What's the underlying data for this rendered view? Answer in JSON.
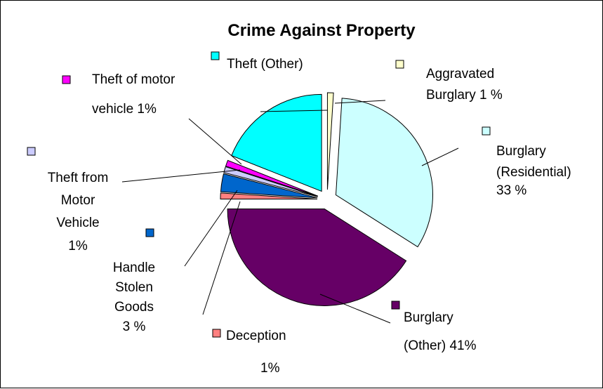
{
  "chart_data": {
    "type": "pie",
    "title": "Crime Against Property",
    "slices": [
      {
        "key": "aggravated_burglary",
        "value": 1,
        "color": "#FFFFCC",
        "label_lines": [
          "Aggravated",
          "Burglary 1 %"
        ]
      },
      {
        "key": "burglary_residential",
        "value": 33,
        "color": "#CCFFFF",
        "label_lines": [
          "Burglary",
          "(Residential)",
          "33 %"
        ]
      },
      {
        "key": "burglary_other",
        "value": 41,
        "color": "#660066",
        "label_lines": [
          "Burglary",
          "(Other) 41%"
        ]
      },
      {
        "key": "deception",
        "value": 1,
        "color": "#FF8080",
        "label_lines": [
          "Deception",
          "1%"
        ]
      },
      {
        "key": "handle_stolen_goods",
        "value": 3,
        "color": "#0066CC",
        "label_lines": [
          "Handle",
          "Stolen",
          "Goods",
          "3 %"
        ]
      },
      {
        "key": "theft_from_motor_vehicle",
        "value": 1,
        "color": "#CCCCFF",
        "label_lines": [
          "Theft from",
          "Motor",
          "Vehicle",
          "1%"
        ]
      },
      {
        "key": "theft_of_motor_vehicle",
        "value": 1,
        "color": "#FF00FF",
        "label_lines": [
          "Theft of motor",
          "vehicle 1%"
        ]
      },
      {
        "key": "theft_other",
        "value": 19,
        "color": "#00FFFF",
        "label_lines": [
          "Theft  (Other)"
        ]
      }
    ]
  }
}
